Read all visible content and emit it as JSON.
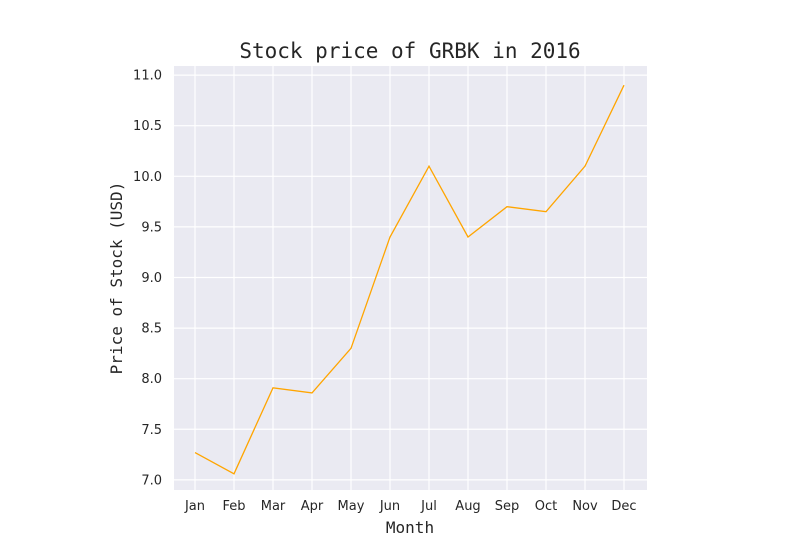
{
  "chart_data": {
    "type": "line",
    "title": "Stock price of GRBK in 2016",
    "xlabel": "Month",
    "ylabel": "Price of Stock (USD)",
    "categories": [
      "Jan",
      "Feb",
      "Mar",
      "Apr",
      "May",
      "Jun",
      "Jul",
      "Aug",
      "Sep",
      "Oct",
      "Nov",
      "Dec"
    ],
    "series": [
      {
        "values": [
          7.27,
          7.06,
          7.91,
          7.86,
          8.3,
          9.4,
          10.1,
          9.4,
          9.7,
          9.65,
          10.1,
          10.9
        ],
        "color": "#ffa500"
      }
    ],
    "ylim": [
      6.9,
      11.09
    ],
    "yticks": [
      7.0,
      7.5,
      8.0,
      8.5,
      9.0,
      9.5,
      10.0,
      10.5,
      11.0
    ],
    "ytick_labels": [
      "7.0",
      "7.5",
      "8.0",
      "8.5",
      "9.0",
      "9.5",
      "10.0",
      "10.5",
      "11.0"
    ],
    "grid": true,
    "legend": "none",
    "background_color": "#eaeaf2",
    "grid_color": "#ffffff"
  }
}
